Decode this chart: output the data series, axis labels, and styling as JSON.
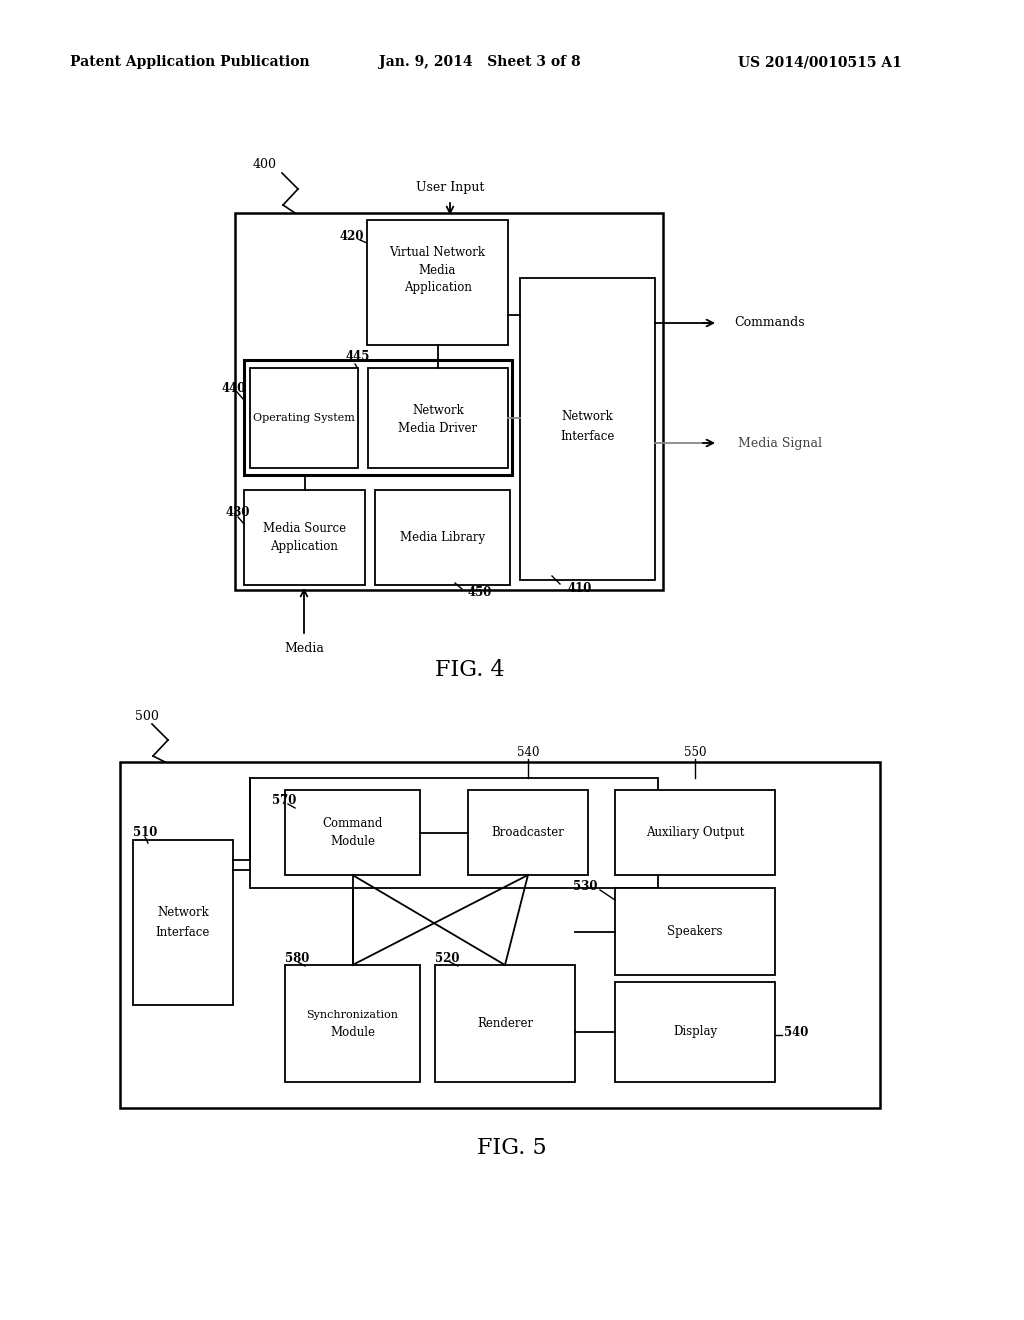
{
  "bg_color": "#ffffff",
  "header_left": "Patent Application Publication",
  "header_mid": "Jan. 9, 2014   Sheet 3 of 8",
  "header_right": "US 2014/0010515 A1"
}
